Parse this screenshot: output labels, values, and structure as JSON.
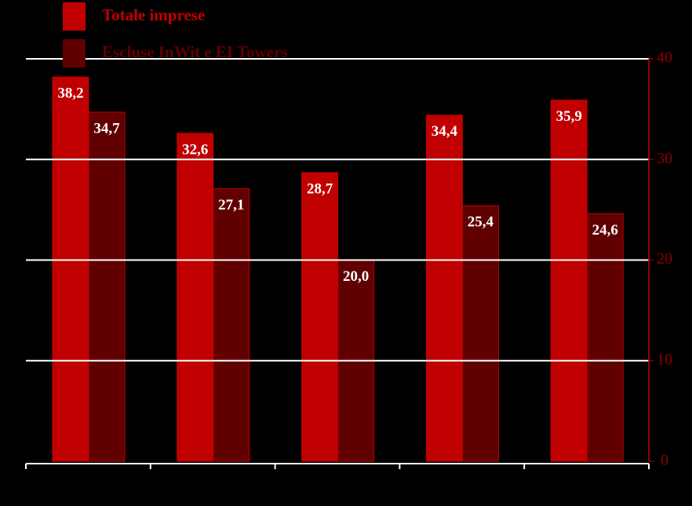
{
  "chart_data": {
    "type": "bar",
    "categories": [
      null,
      null,
      null,
      null,
      null
    ],
    "series": [
      {
        "name": "Totale imprese",
        "color": "#c00000",
        "values": [
          38.2,
          32.6,
          28.7,
          34.4,
          35.9
        ],
        "value_labels": [
          "38,2",
          "32,6",
          "28,7",
          "34,4",
          "35,9"
        ]
      },
      {
        "name": "Escluse InWit e EI Towers",
        "color": "#600000",
        "values": [
          34.7,
          27.1,
          20.0,
          25.4,
          24.6
        ],
        "value_labels": [
          "34,7",
          "27,1",
          "20,0",
          "25,4",
          "24,6"
        ]
      }
    ],
    "ylim": [
      0,
      40
    ],
    "yticks": [
      0,
      10,
      20,
      30,
      40
    ],
    "grid": true,
    "y_axis_side": "right",
    "legend": "top-left"
  }
}
